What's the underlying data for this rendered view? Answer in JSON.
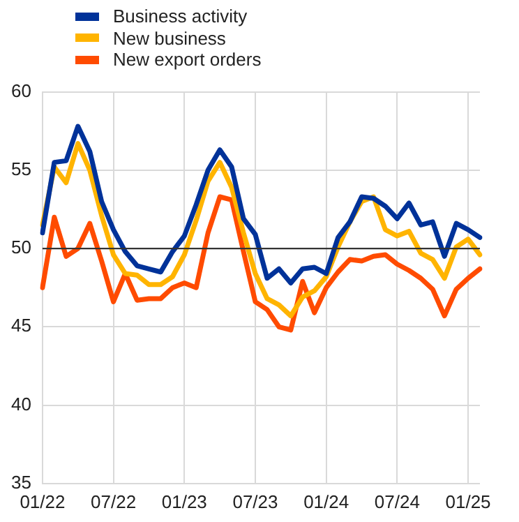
{
  "chart_data": {
    "type": "line",
    "categories": [
      "01/22",
      null,
      null,
      null,
      null,
      null,
      "07/22",
      null,
      null,
      null,
      null,
      null,
      "01/23",
      null,
      null,
      null,
      null,
      null,
      "07/23",
      null,
      null,
      null,
      null,
      null,
      "01/24",
      null,
      null,
      null,
      null,
      null,
      "07/24",
      null,
      null,
      null,
      null,
      null,
      "01/25",
      null
    ],
    "series": [
      {
        "name": "Business activity",
        "color": "#003299",
        "values": [
          51.0,
          55.5,
          55.6,
          57.8,
          56.2,
          53.0,
          51.2,
          49.8,
          48.9,
          48.7,
          48.5,
          49.8,
          50.8,
          52.8,
          55.0,
          56.3,
          55.2,
          51.9,
          50.9,
          48.1,
          48.7,
          47.8,
          48.7,
          48.8,
          48.4,
          50.7,
          51.7,
          53.3,
          53.2,
          52.7,
          51.9,
          52.9,
          51.5,
          51.7,
          49.5,
          51.6,
          51.2,
          50.7
        ]
      },
      {
        "name": "New business",
        "color": "#ffb400",
        "values": [
          51.5,
          55.2,
          54.2,
          56.7,
          55.0,
          52.1,
          49.6,
          48.4,
          48.3,
          47.7,
          47.7,
          48.2,
          49.6,
          51.8,
          54.3,
          55.5,
          53.9,
          51.0,
          48.4,
          46.8,
          46.4,
          45.7,
          46.9,
          47.3,
          48.2,
          50.1,
          51.7,
          53.0,
          53.3,
          51.2,
          50.8,
          51.1,
          49.7,
          49.3,
          48.1,
          50.1,
          50.6,
          49.6
        ]
      },
      {
        "name": "New export orders",
        "color": "#ff4b00",
        "values": [
          47.5,
          52.0,
          49.5,
          50.0,
          51.6,
          49.2,
          46.6,
          48.4,
          46.7,
          46.8,
          46.8,
          47.5,
          47.8,
          47.5,
          51.0,
          53.3,
          53.1,
          49.8,
          46.6,
          46.1,
          45.0,
          44.8,
          47.9,
          45.9,
          47.5,
          48.5,
          49.3,
          49.2,
          49.5,
          49.6,
          49.0,
          48.6,
          48.1,
          47.4,
          45.7,
          47.4,
          48.1,
          48.7
        ]
      }
    ],
    "ylim": [
      35,
      60
    ],
    "yticks": [
      35,
      40,
      45,
      50,
      55,
      60
    ],
    "grid": true,
    "legend": "top left",
    "ref_lines": [
      {
        "axis": "y",
        "value": 50,
        "color": "#333333"
      }
    ]
  }
}
